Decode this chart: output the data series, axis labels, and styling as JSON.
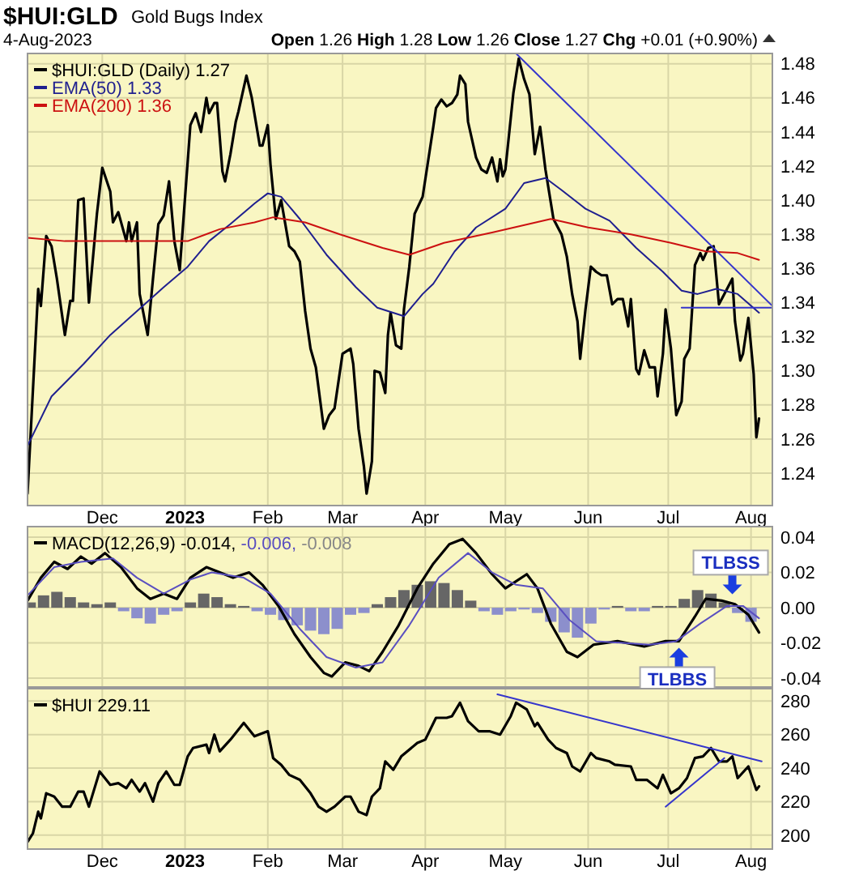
{
  "chart_data": [
    {
      "type": "line",
      "title": "$HUI:GLD",
      "subtitle": "Gold Bugs Index",
      "annotations": [
        "4-Aug-2023",
        "Open 1.26 High 1.28 Low 1.26 Close 1.27 Chg +0.01 (+0.90%)"
      ],
      "xlim": [
        "2022-11-03",
        "2023-08-09"
      ],
      "ylim": [
        1.221,
        1.486
      ],
      "xticks": [
        {
          "value": "2022-12-01",
          "label": "Dec"
        },
        {
          "value": "2023-01-01",
          "label": "2023"
        },
        {
          "value": "2023-02-01",
          "label": "Feb"
        },
        {
          "value": "2023-03-01",
          "label": "Mar"
        },
        {
          "value": "2023-04-01",
          "label": "Apr"
        },
        {
          "value": "2023-05-01",
          "label": "May"
        },
        {
          "value": "2023-06-01",
          "label": "Jun"
        },
        {
          "value": "2023-07-01",
          "label": "Jul"
        },
        {
          "value": "2023-08-01",
          "label": "Aug"
        }
      ],
      "yticks": [
        1.24,
        1.26,
        1.28,
        {
          "value": 1.3,
          "label": "1.30"
        },
        1.32,
        1.34,
        1.36,
        1.38,
        {
          "value": 1.4,
          "label": "1.40"
        },
        1.42,
        1.44,
        1.46,
        1.48
      ],
      "grid": true,
      "legend": "top left",
      "series": [
        {
          "name": "$HUI:GLD (Daily) 1.27",
          "color": "#000000",
          "x": [
            "2022-11-03",
            "2022-11-07",
            "2022-11-08",
            "2022-11-10",
            "2022-11-12",
            "2022-11-14",
            "2022-11-17",
            "2022-11-19",
            "2022-11-20",
            "2022-11-22",
            "2022-11-24",
            "2022-11-26",
            "2022-11-29",
            "2022-12-01",
            "2022-12-04",
            "2022-12-05",
            "2022-12-07",
            "2022-12-10",
            "2022-12-11",
            "2022-12-12",
            "2022-12-14",
            "2022-12-15",
            "2022-12-18",
            "2022-12-20",
            "2022-12-22",
            "2022-12-24",
            "2022-12-26",
            "2022-12-28",
            "2022-12-30",
            "2023-01-03",
            "2023-01-05",
            "2023-01-07",
            "2023-01-09",
            "2023-01-10",
            "2023-01-12",
            "2023-01-13",
            "2023-01-15",
            "2023-01-16",
            "2023-01-18",
            "2023-01-20",
            "2023-01-21",
            "2023-01-24",
            "2023-01-26",
            "2023-01-29",
            "2023-01-30",
            "2023-02-01",
            "2023-02-02",
            "2023-02-04",
            "2023-02-06",
            "2023-02-09",
            "2023-02-11",
            "2023-02-13",
            "2023-02-15",
            "2023-02-17",
            "2023-02-19",
            "2023-02-22",
            "2023-02-24",
            "2023-02-26",
            "2023-03-01",
            "2023-03-04",
            "2023-03-05",
            "2023-03-07",
            "2023-03-09",
            "2023-03-10",
            "2023-03-12",
            "2023-03-13",
            "2023-03-15",
            "2023-03-17",
            "2023-03-18",
            "2023-03-19",
            "2023-03-21",
            "2023-03-23",
            "2023-03-24",
            "2023-03-26",
            "2023-03-28",
            "2023-03-31",
            "2023-04-04",
            "2023-04-05",
            "2023-04-07",
            "2023-04-09",
            "2023-04-11",
            "2023-04-13",
            "2023-04-14",
            "2023-04-16",
            "2023-04-17",
            "2023-04-20",
            "2023-04-22",
            "2023-04-24",
            "2023-04-26",
            "2023-04-28",
            "2023-04-29",
            "2023-04-30",
            "2023-05-01",
            "2023-05-04",
            "2023-05-06",
            "2023-05-08",
            "2023-05-10",
            "2023-05-12",
            "2023-05-14",
            "2023-05-16",
            "2023-05-19",
            "2023-05-22",
            "2023-05-24",
            "2023-05-26",
            "2023-05-28",
            "2023-05-29",
            "2023-05-31",
            "2023-06-02",
            "2023-06-04",
            "2023-06-06",
            "2023-06-08",
            "2023-06-10",
            "2023-06-12",
            "2023-06-14",
            "2023-06-16",
            "2023-06-17",
            "2023-06-19",
            "2023-06-20",
            "2023-06-22",
            "2023-06-24",
            "2023-06-26",
            "2023-06-27",
            "2023-06-29",
            "2023-06-30",
            "2023-07-02",
            "2023-07-04",
            "2023-07-06",
            "2023-07-07",
            "2023-07-09",
            "2023-07-11",
            "2023-07-13",
            "2023-07-14",
            "2023-07-16",
            "2023-07-18",
            "2023-07-20",
            "2023-07-22",
            "2023-07-25",
            "2023-07-26",
            "2023-07-28",
            "2023-07-29",
            "2023-07-31",
            "2023-08-02",
            "2023-08-03",
            "2023-08-04"
          ],
          "values": [
            1.228,
            1.348,
            1.338,
            1.379,
            1.373,
            1.354,
            1.321,
            1.341,
            1.341,
            1.4,
            1.401,
            1.34,
            1.392,
            1.419,
            1.405,
            1.387,
            1.393,
            1.376,
            1.387,
            1.376,
            1.387,
            1.345,
            1.321,
            1.354,
            1.386,
            1.391,
            1.411,
            1.376,
            1.359,
            1.444,
            1.451,
            1.44,
            1.46,
            1.451,
            1.457,
            1.457,
            1.417,
            1.411,
            1.427,
            1.446,
            1.452,
            1.473,
            1.46,
            1.432,
            1.432,
            1.444,
            1.421,
            1.389,
            1.4,
            1.373,
            1.37,
            1.364,
            1.335,
            1.313,
            1.302,
            1.266,
            1.274,
            1.278,
            1.31,
            1.313,
            1.304,
            1.266,
            1.244,
            1.228,
            1.247,
            1.3,
            1.299,
            1.287,
            1.321,
            1.334,
            1.315,
            1.313,
            1.336,
            1.361,
            1.392,
            1.402,
            1.443,
            1.454,
            1.459,
            1.455,
            1.457,
            1.462,
            1.473,
            1.468,
            1.446,
            1.425,
            1.418,
            1.416,
            1.425,
            1.411,
            1.424,
            1.414,
            1.418,
            1.463,
            1.483,
            1.471,
            1.462,
            1.427,
            1.443,
            1.418,
            1.389,
            1.38,
            1.367,
            1.345,
            1.329,
            1.307,
            1.336,
            1.361,
            1.358,
            1.356,
            1.356,
            1.339,
            1.342,
            1.342,
            1.326,
            1.342,
            1.301,
            1.298,
            1.312,
            1.302,
            1.302,
            1.285,
            1.31,
            1.336,
            1.313,
            1.274,
            1.282,
            1.307,
            1.313,
            1.362,
            1.369,
            1.365,
            1.372,
            1.373,
            1.339,
            1.345,
            1.354,
            1.329,
            1.306,
            1.31,
            1.331,
            1.298,
            1.261,
            1.272
          ]
        },
        {
          "name": "EMA(50) 1.33",
          "color": "#1f1f8f",
          "x": [
            "2022-11-03",
            "2022-11-12",
            "2022-11-24",
            "2022-12-04",
            "2022-12-14",
            "2022-12-24",
            "2023-01-02",
            "2023-01-10",
            "2023-01-18",
            "2023-01-27",
            "2023-02-01",
            "2023-02-06",
            "2023-02-13",
            "2023-02-23",
            "2023-03-06",
            "2023-03-14",
            "2023-03-24",
            "2023-03-31",
            "2023-04-04",
            "2023-04-12",
            "2023-04-20",
            "2023-05-01",
            "2023-05-08",
            "2023-05-16",
            "2023-05-22",
            "2023-05-31",
            "2023-06-09",
            "2023-06-19",
            "2023-06-29",
            "2023-07-06",
            "2023-07-12",
            "2023-07-19",
            "2023-07-27",
            "2023-08-04"
          ],
          "values": [
            1.256,
            1.285,
            1.304,
            1.321,
            1.335,
            1.349,
            1.361,
            1.376,
            1.386,
            1.398,
            1.404,
            1.402,
            1.389,
            1.368,
            1.349,
            1.337,
            1.332,
            1.345,
            1.351,
            1.37,
            1.384,
            1.395,
            1.41,
            1.413,
            1.406,
            1.395,
            1.388,
            1.372,
            1.358,
            1.347,
            1.345,
            1.348,
            1.345,
            1.334
          ]
        },
        {
          "name": "EMA(200) 1.36",
          "color": "#cc1111",
          "x": [
            "2022-11-03",
            "2022-11-17",
            "2022-12-04",
            "2022-12-20",
            "2023-01-02",
            "2023-01-14",
            "2023-01-27",
            "2023-02-03",
            "2023-02-15",
            "2023-02-28",
            "2023-03-16",
            "2023-03-26",
            "2023-04-08",
            "2023-04-26",
            "2023-05-18",
            "2023-06-01",
            "2023-06-17",
            "2023-07-02",
            "2023-07-15",
            "2023-07-27",
            "2023-08-04"
          ],
          "values": [
            1.378,
            1.376,
            1.376,
            1.376,
            1.376,
            1.383,
            1.387,
            1.39,
            1.387,
            1.38,
            1.372,
            1.368,
            1.375,
            1.381,
            1.389,
            1.384,
            1.38,
            1.375,
            1.37,
            1.369,
            1.365
          ]
        },
        {
          "color": "#3535cc",
          "x": [
            "2023-05-05",
            "2023-08-09"
          ],
          "values": [
            1.486,
            1.338
          ]
        },
        {
          "color": "#3535cc",
          "x": [
            "2023-07-06",
            "2023-08-09"
          ],
          "values": [
            1.337,
            1.337
          ]
        }
      ]
    },
    {
      "type": "line",
      "xlim": [
        "2022-11-03",
        "2023-08-09"
      ],
      "ylim": [
        -0.045,
        0.046
      ],
      "tick_labels": "y",
      "xticks": [
        {
          "value": "2022-12-01",
          "label": null
        },
        {
          "value": "2023-01-01",
          "label": null
        },
        {
          "value": "2023-02-01",
          "label": null
        },
        {
          "value": "2023-03-01",
          "label": null
        },
        {
          "value": "2023-04-01",
          "label": null
        },
        {
          "value": "2023-05-01",
          "label": null
        },
        {
          "value": "2023-06-01",
          "label": null
        },
        {
          "value": "2023-07-01",
          "label": null
        },
        {
          "value": "2023-08-01",
          "label": null
        }
      ],
      "yticks": [
        -0.04,
        -0.02,
        {
          "value": 0,
          "label": "0.00"
        },
        0.02,
        0.04
      ],
      "grid": true,
      "legend": "top left",
      "annotations": [
        {
          "text": "TLBSS",
          "x": "2023-07-25",
          "y": 0.004
        },
        {
          "text": "TLBBS",
          "x": "2023-07-05",
          "y": -0.019
        }
      ],
      "series": [
        {
          "type": "bar",
          "name": "-0.008",
          "color": "#888888",
          "x": [
            "2022-11-04",
            "2022-11-09",
            "2022-11-14",
            "2022-11-19",
            "2022-11-24",
            "2022-11-29",
            "2022-12-04",
            "2022-12-09",
            "2022-12-14",
            "2022-12-19",
            "2022-12-24",
            "2022-12-29",
            "2023-01-03",
            "2023-01-08",
            "2023-01-13",
            "2023-01-18",
            "2023-01-23",
            "2023-01-28",
            "2023-02-02",
            "2023-02-07",
            "2023-02-12",
            "2023-02-17",
            "2023-02-22",
            "2023-02-27",
            "2023-03-04",
            "2023-03-09",
            "2023-03-14",
            "2023-03-19",
            "2023-03-24",
            "2023-03-29",
            "2023-04-03",
            "2023-04-08",
            "2023-04-13",
            "2023-04-18",
            "2023-04-23",
            "2023-04-28",
            "2023-05-03",
            "2023-05-08",
            "2023-05-13",
            "2023-05-18",
            "2023-05-23",
            "2023-05-28",
            "2023-06-02",
            "2023-06-07",
            "2023-06-12",
            "2023-06-17",
            "2023-06-22",
            "2023-06-27",
            "2023-07-02",
            "2023-07-07",
            "2023-07-12",
            "2023-07-17",
            "2023-07-22",
            "2023-07-27",
            "2023-08-01"
          ],
          "values": [
            0.003,
            0.007,
            0.009,
            0.006,
            0.003,
            0.002,
            0.003,
            -0.002,
            -0.006,
            -0.009,
            -0.004,
            -0.002,
            0.003,
            0.008,
            0.006,
            0.002,
            0.001,
            -0.002,
            -0.004,
            -0.007,
            -0.01,
            -0.013,
            -0.015,
            -0.012,
            -0.004,
            -0.003,
            0.002,
            0.006,
            0.01,
            0.013,
            0.015,
            0.014,
            0.01,
            0.004,
            -0.002,
            -0.004,
            -0.002,
            -0.001,
            -0.003,
            -0.008,
            -0.014,
            -0.017,
            -0.009,
            -0.001,
            0.001,
            -0.002,
            -0.002,
            0.001,
            0.001,
            0.005,
            0.01,
            0.008,
            0.003,
            -0.003,
            -0.008
          ],
          "colors": [
            "#666666",
            "#666666",
            "#666666",
            "#666666",
            "#666666",
            "#666666",
            "#666666",
            "#8c8fcc",
            "#8c8fcc",
            "#8c8fcc",
            "#8c8fcc",
            "#8c8fcc",
            "#666666",
            "#666666",
            "#666666",
            "#666666",
            "#666666",
            "#8c8fcc",
            "#8c8fcc",
            "#8c8fcc",
            "#8c8fcc",
            "#8c8fcc",
            "#8c8fcc",
            "#8c8fcc",
            "#8c8fcc",
            "#8c8fcc",
            "#666666",
            "#666666",
            "#666666",
            "#666666",
            "#666666",
            "#666666",
            "#666666",
            "#666666",
            "#8c8fcc",
            "#8c8fcc",
            "#8c8fcc",
            "#8c8fcc",
            "#8c8fcc",
            "#8c8fcc",
            "#8c8fcc",
            "#8c8fcc",
            "#8c8fcc",
            "#8c8fcc",
            "#666666",
            "#8c8fcc",
            "#8c8fcc",
            "#666666",
            "#666666",
            "#666666",
            "#666666",
            "#666666",
            "#666666",
            "#8c8fcc",
            "#8c8fcc"
          ]
        },
        {
          "name": "MACD(12,26,9) -0.014,",
          "color": "#000000",
          "x": [
            "2022-11-03",
            "2022-11-08",
            "2022-11-13",
            "2022-11-18",
            "2022-11-23",
            "2022-11-27",
            "2022-12-02",
            "2022-12-08",
            "2022-12-14",
            "2022-12-19",
            "2022-12-24",
            "2022-12-29",
            "2023-01-03",
            "2023-01-09",
            "2023-01-14",
            "2023-01-19",
            "2023-01-25",
            "2023-01-30",
            "2023-02-05",
            "2023-02-11",
            "2023-02-17",
            "2023-02-22",
            "2023-02-25",
            "2023-03-02",
            "2023-03-07",
            "2023-03-11",
            "2023-03-16",
            "2023-03-22",
            "2023-03-29",
            "2023-04-04",
            "2023-04-10",
            "2023-04-15",
            "2023-04-20",
            "2023-04-26",
            "2023-05-01",
            "2023-05-04",
            "2023-05-09",
            "2023-05-13",
            "2023-05-18",
            "2023-05-24",
            "2023-05-28",
            "2023-06-03",
            "2023-06-12",
            "2023-06-22",
            "2023-06-30",
            "2023-07-05",
            "2023-07-11",
            "2023-07-15",
            "2023-07-21",
            "2023-07-26",
            "2023-07-31",
            "2023-08-04"
          ],
          "values": [
            0.004,
            0.017,
            0.026,
            0.022,
            0.029,
            0.025,
            0.031,
            0.023,
            0.011,
            0.005,
            0.008,
            0.005,
            0.017,
            0.023,
            0.02,
            0.017,
            0.02,
            0.013,
            0.001,
            -0.015,
            -0.028,
            -0.037,
            -0.039,
            -0.031,
            -0.033,
            -0.036,
            -0.025,
            -0.01,
            0.011,
            0.025,
            0.036,
            0.039,
            0.031,
            0.019,
            0.011,
            0.014,
            0.019,
            0.011,
            -0.009,
            -0.025,
            -0.028,
            -0.021,
            -0.019,
            -0.022,
            -0.019,
            -0.019,
            -0.005,
            0.005,
            0.004,
            0.002,
            -0.004,
            -0.014
          ]
        },
        {
          "name": "-0.006,",
          "color": "#5a4fc0",
          "x": [
            "2022-11-03",
            "2022-11-13",
            "2022-11-23",
            "2022-12-05",
            "2022-12-14",
            "2022-12-24",
            "2023-01-03",
            "2023-01-11",
            "2023-01-23",
            "2023-02-02",
            "2023-02-13",
            "2023-02-23",
            "2023-03-06",
            "2023-03-16",
            "2023-03-26",
            "2023-04-06",
            "2023-04-17",
            "2023-04-26",
            "2023-05-05",
            "2023-05-15",
            "2023-05-25",
            "2023-06-04",
            "2023-06-14",
            "2023-06-24",
            "2023-07-04",
            "2023-07-13",
            "2023-07-23",
            "2023-07-29",
            "2023-08-04"
          ],
          "values": [
            0.007,
            0.023,
            0.026,
            0.028,
            0.017,
            0.008,
            0.016,
            0.02,
            0.017,
            0.008,
            -0.012,
            -0.028,
            -0.034,
            -0.031,
            -0.01,
            0.017,
            0.031,
            0.02,
            0.013,
            0.011,
            -0.007,
            -0.019,
            -0.02,
            -0.021,
            -0.019,
            -0.009,
            0.001,
            0.001,
            -0.006
          ]
        }
      ]
    },
    {
      "type": "line",
      "xlim": [
        "2022-11-03",
        "2023-08-09"
      ],
      "ylim": [
        191.7,
        287.4
      ],
      "xticks": [
        {
          "value": "2022-12-01",
          "label": "Dec"
        },
        {
          "value": "2023-01-01",
          "label": "2023"
        },
        {
          "value": "2023-02-01",
          "label": "Feb"
        },
        {
          "value": "2023-03-01",
          "label": "Mar"
        },
        {
          "value": "2023-04-01",
          "label": "Apr"
        },
        {
          "value": "2023-05-01",
          "label": "May"
        },
        {
          "value": "2023-06-01",
          "label": "Jun"
        },
        {
          "value": "2023-07-01",
          "label": "Jul"
        },
        {
          "value": "2023-08-01",
          "label": "Aug"
        }
      ],
      "yticks": [
        200,
        220,
        240,
        260,
        280
      ],
      "grid": true,
      "legend": "top left",
      "series": [
        {
          "name": "$HUI 229.11",
          "color": "#000000",
          "x": [
            "2022-11-03",
            "2022-11-05",
            "2022-11-07",
            "2022-11-08",
            "2022-11-10",
            "2022-11-13",
            "2022-11-16",
            "2022-11-19",
            "2022-11-22",
            "2022-11-24",
            "2022-11-26",
            "2022-11-30",
            "2022-12-04",
            "2022-12-07",
            "2022-12-10",
            "2022-12-12",
            "2022-12-15",
            "2022-12-17",
            "2022-12-20",
            "2022-12-22",
            "2022-12-25",
            "2022-12-28",
            "2022-12-30",
            "2023-01-02",
            "2023-01-04",
            "2023-01-09",
            "2023-01-10",
            "2023-01-12",
            "2023-01-14",
            "2023-01-18",
            "2023-01-23",
            "2023-01-27",
            "2023-02-01",
            "2023-02-03",
            "2023-02-06",
            "2023-02-09",
            "2023-02-13",
            "2023-02-17",
            "2023-02-20",
            "2023-02-23",
            "2023-02-26",
            "2023-03-02",
            "2023-03-04",
            "2023-03-07",
            "2023-03-10",
            "2023-03-12",
            "2023-03-15",
            "2023-03-17",
            "2023-03-20",
            "2023-03-23",
            "2023-03-29",
            "2023-04-01",
            "2023-04-05",
            "2023-04-09",
            "2023-04-11",
            "2023-04-14",
            "2023-04-17",
            "2023-04-21",
            "2023-04-25",
            "2023-04-29",
            "2023-05-03",
            "2023-05-05",
            "2023-05-09",
            "2023-05-12",
            "2023-05-13",
            "2023-05-17",
            "2023-05-20",
            "2023-05-24",
            "2023-05-26",
            "2023-05-29",
            "2023-06-02",
            "2023-06-04",
            "2023-06-09",
            "2023-06-11",
            "2023-06-17",
            "2023-06-19",
            "2023-06-23",
            "2023-06-27",
            "2023-06-29",
            "2023-07-02",
            "2023-07-05",
            "2023-07-08",
            "2023-07-11",
            "2023-07-14",
            "2023-07-17",
            "2023-07-20",
            "2023-07-23",
            "2023-07-25",
            "2023-07-27",
            "2023-07-31",
            "2023-08-03",
            "2023-08-04"
          ],
          "values": [
            196,
            201,
            214,
            210,
            225,
            223,
            217,
            217,
            226,
            226,
            217,
            238,
            230,
            231,
            228,
            233,
            226,
            231,
            220,
            231,
            238,
            230,
            230,
            247,
            252,
            254,
            249,
            260,
            250,
            257,
            267,
            259,
            262,
            246,
            242,
            236,
            233,
            225,
            217,
            214,
            217,
            223,
            223,
            214,
            212,
            223,
            228,
            244,
            239,
            247,
            255,
            257,
            270,
            270,
            271,
            279,
            268,
            262,
            262,
            260,
            271,
            279,
            275,
            265,
            267,
            257,
            252,
            249,
            241,
            238,
            249,
            246,
            244,
            242,
            241,
            233,
            233,
            228,
            236,
            225,
            228,
            234,
            246,
            247,
            252,
            244,
            244,
            247,
            234,
            241,
            227,
            229.11
          ]
        },
        {
          "color": "#3535cc",
          "x": [
            "2023-04-28",
            "2023-08-05"
          ],
          "values": [
            284,
            244
          ]
        },
        {
          "color": "#3535cc",
          "x": [
            "2023-06-30",
            "2023-07-22"
          ],
          "values": [
            217,
            246
          ]
        }
      ]
    }
  ]
}
